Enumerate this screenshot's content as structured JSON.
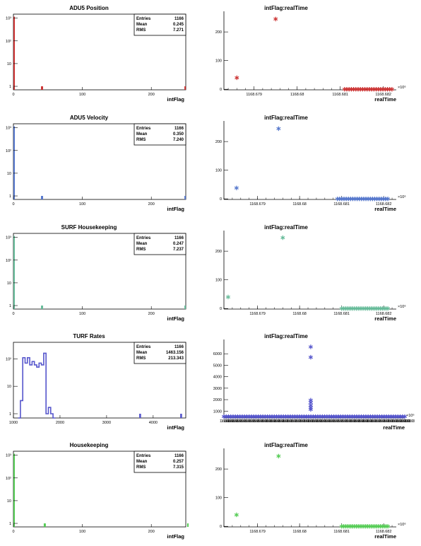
{
  "chart_data": [
    {
      "type": "bar",
      "title": "ADU5 Position",
      "xlabel": "intFlag",
      "ylabel": "",
      "log_y": true,
      "xlim": [
        0,
        250
      ],
      "ylim": [
        0.7,
        1500
      ],
      "xticks": [
        0,
        100,
        200
      ],
      "ytick_labels": [
        "1",
        "10",
        "10²",
        "10³"
      ],
      "ytick_values": [
        1,
        10,
        100,
        1000
      ],
      "color": "#cc3333",
      "bins": [
        {
          "x0": 0,
          "x1": 2,
          "y": 1160
        },
        {
          "x0": 40,
          "x1": 43,
          "y": 1
        },
        {
          "x0": 248,
          "x1": 250,
          "y": 1
        }
      ],
      "stats": {
        "entries_label": "Entries",
        "entries": "1166",
        "mean_label": "Mean",
        "mean": "0.245",
        "rms_label": "RMS",
        "rms": "7.271"
      }
    },
    {
      "type": "scatter",
      "title": "intFlag:realTime",
      "xlabel": "realTime",
      "ylabel": "",
      "xlim": [
        1168.6783,
        1168.6823
      ],
      "ylim": [
        -2,
        262
      ],
      "xtick_values": [
        1168.679,
        1168.68,
        1168.681,
        1168.682
      ],
      "xtick_labels": [
        "1168.679",
        "1168.68",
        "1168.681",
        "1168.682"
      ],
      "ytick_values": [
        0,
        100,
        200
      ],
      "ytick_labels": [
        "0",
        "100",
        "200"
      ],
      "x_multiplier": "×10⁶",
      "color": "#cc3333",
      "points": [
        [
          1168.6786,
          40
        ],
        [
          1168.6795,
          245
        ]
      ],
      "dense": {
        "x0": 1168.6811,
        "x1": 1168.6822,
        "y": 0,
        "n": 22
      }
    },
    {
      "type": "bar",
      "title": "ADU5 Velocity",
      "xlabel": "intFlag",
      "ylabel": "",
      "log_y": true,
      "xlim": [
        0,
        250
      ],
      "ylim": [
        0.7,
        1500
      ],
      "xticks": [
        0,
        100,
        200
      ],
      "ytick_labels": [
        "1",
        "10",
        "10²",
        "10³"
      ],
      "ytick_values": [
        1,
        10,
        100,
        1000
      ],
      "color": "#5577cc",
      "bins": [
        {
          "x0": 0,
          "x1": 2,
          "y": 1160
        },
        {
          "x0": 40,
          "x1": 43,
          "y": 1
        },
        {
          "x0": 248,
          "x1": 250,
          "y": 1
        }
      ],
      "stats": {
        "entries_label": "Entries",
        "entries": "1166",
        "mean_label": "Mean",
        "mean": "0.350",
        "rms_label": "RMS",
        "rms": "7.240"
      }
    },
    {
      "type": "scatter",
      "title": "intFlag:realTime",
      "xlabel": "realTime",
      "ylabel": "",
      "xlim": [
        1168.6782,
        1168.6823
      ],
      "ylim": [
        -2,
        262
      ],
      "xtick_values": [
        1168.679,
        1168.68,
        1168.681,
        1168.682
      ],
      "xtick_labels": [
        "1168.679",
        "1168.68",
        "1168.681",
        "1168.682"
      ],
      "ytick_values": [
        0,
        100,
        200
      ],
      "ytick_labels": [
        "0",
        "100",
        "200"
      ],
      "x_multiplier": "×10⁶",
      "color": "#5577cc",
      "points": [
        [
          1168.6785,
          38
        ],
        [
          1168.6795,
          245
        ]
      ],
      "dense": {
        "x0": 1168.6809,
        "x1": 1168.6821,
        "y": 0,
        "n": 24
      }
    },
    {
      "type": "bar",
      "title": "SURF Housekeeping",
      "xlabel": "intFlag",
      "ylabel": "",
      "log_y": true,
      "xlim": [
        0,
        250
      ],
      "ylim": [
        0.7,
        1500
      ],
      "xticks": [
        0,
        100,
        200
      ],
      "ytick_labels": [
        "1",
        "10",
        "10²",
        "10³"
      ],
      "ytick_values": [
        1,
        10,
        100,
        1000
      ],
      "color": "#66bb99",
      "bins": [
        {
          "x0": 0,
          "x1": 2,
          "y": 1160
        },
        {
          "x0": 40,
          "x1": 43,
          "y": 1
        },
        {
          "x0": 248,
          "x1": 250,
          "y": 1
        }
      ],
      "stats": {
        "entries_label": "Entries",
        "entries": "1166",
        "mean_label": "Mean",
        "mean": "0.247",
        "rms_label": "RMS",
        "rms": "7.237"
      }
    },
    {
      "type": "scatter",
      "title": "intFlag:realTime",
      "xlabel": "realTime",
      "ylabel": "",
      "xlim": [
        1168.6782,
        1168.6823
      ],
      "ylim": [
        -2,
        262
      ],
      "xtick_values": [
        1168.679,
        1168.68,
        1168.681,
        1168.682
      ],
      "xtick_labels": [
        "1168.679",
        "1168.68",
        "1168.681",
        "1168.682"
      ],
      "ytick_values": [
        0,
        100,
        200
      ],
      "ytick_labels": [
        "0",
        "100",
        "200"
      ],
      "x_multiplier": "×10⁶",
      "color": "#66bb99",
      "points": [
        [
          1168.6783,
          40
        ],
        [
          1168.6796,
          247
        ]
      ],
      "dense": {
        "x0": 1168.681,
        "x1": 1168.6821,
        "y": 0,
        "n": 26
      }
    },
    {
      "type": "bar",
      "title": "TURF Rates",
      "xlabel": "intFlag",
      "ylabel": "",
      "log_y": true,
      "outline": true,
      "xlim": [
        1000,
        4700
      ],
      "ylim": [
        0.7,
        400
      ],
      "xticks": [
        1000,
        2000,
        3000,
        4000
      ],
      "ytick_labels": [
        "1",
        "10",
        "10²"
      ],
      "ytick_values": [
        1,
        10,
        100
      ],
      "color": "#5555cc",
      "step_bins": [
        [
          1100,
          1150,
          0.7
        ],
        [
          1150,
          1200,
          3
        ],
        [
          1200,
          1250,
          110
        ],
        [
          1250,
          1300,
          70
        ],
        [
          1300,
          1350,
          110
        ],
        [
          1350,
          1400,
          60
        ],
        [
          1400,
          1450,
          80
        ],
        [
          1450,
          1500,
          60
        ],
        [
          1500,
          1550,
          50
        ],
        [
          1550,
          1600,
          70
        ],
        [
          1600,
          1650,
          60
        ],
        [
          1650,
          1700,
          160
        ],
        [
          1700,
          1750,
          1
        ],
        [
          1750,
          1800,
          1.7
        ],
        [
          1800,
          1850,
          1
        ],
        [
          1850,
          1900,
          0.7
        ]
      ],
      "bins": [
        {
          "x0": 3700,
          "x1": 3740,
          "y": 1
        },
        {
          "x0": 4580,
          "x1": 4620,
          "y": 1
        }
      ],
      "stats": {
        "entries_label": "Entries",
        "entries": "1166",
        "mean_label": "Mean",
        "mean": "1463.156",
        "rms_label": "RMS",
        "rms": "213.343"
      }
    },
    {
      "type": "scatter",
      "title": "intFlag:realTime",
      "xlabel": "realTime",
      "ylabel": "",
      "xlim": [
        0,
        100
      ],
      "ylim": [
        400,
        7000
      ],
      "xtick_values": [],
      "xtick_labels": [],
      "dense_axis_labels": true,
      "ytick_values": [
        1000,
        2000,
        3000,
        4000,
        5000,
        6000
      ],
      "ytick_labels": [
        "1000",
        "2000",
        "3000",
        "4000",
        "5000",
        "6000"
      ],
      "x_multiplier": "×10⁶",
      "color": "#5555cc",
      "points": [
        [
          48,
          6600
        ],
        [
          48,
          5700
        ],
        [
          48,
          1950
        ],
        [
          48,
          1750
        ],
        [
          48,
          1500
        ],
        [
          48,
          1300
        ],
        [
          48,
          1150
        ]
      ],
      "dense": {
        "x0": 0,
        "x1": 100,
        "y": 520,
        "n": 80
      }
    },
    {
      "type": "bar",
      "title": "Housekeeping",
      "xlabel": "intFlag",
      "ylabel": "",
      "log_y": true,
      "xlim": [
        0,
        250
      ],
      "ylim": [
        0.7,
        1500
      ],
      "xticks": [
        0,
        100,
        200
      ],
      "ytick_labels": [
        "1",
        "10",
        "10²",
        "10³"
      ],
      "ytick_values": [
        1,
        10,
        100,
        1000
      ],
      "color": "#55cc55",
      "bins": [
        {
          "x0": 0,
          "x1": 2,
          "y": 1160
        },
        {
          "x0": 44,
          "x1": 47,
          "y": 1
        },
        {
          "x0": 252,
          "x1": 254,
          "y": 1
        }
      ],
      "stats": {
        "entries_label": "Entries",
        "entries": "1166",
        "mean_label": "Mean",
        "mean": "0.257",
        "rms_label": "RMS",
        "rms": "7.315"
      }
    },
    {
      "type": "scatter",
      "title": "intFlag:realTime",
      "xlabel": "realTime",
      "ylabel": "",
      "xlim": [
        1168.6782,
        1168.6823
      ],
      "ylim": [
        -2,
        262
      ],
      "xtick_values": [
        1168.679,
        1168.68,
        1168.681,
        1168.682
      ],
      "xtick_labels": [
        "1168.679",
        "1168.68",
        "1168.681",
        "1168.682"
      ],
      "ytick_values": [
        0,
        100,
        200
      ],
      "ytick_labels": [
        "0",
        "100",
        "200"
      ],
      "x_multiplier": "×10⁶",
      "color": "#55cc55",
      "points": [
        [
          1168.6785,
          40
        ],
        [
          1168.6795,
          245
        ]
      ],
      "dense": {
        "x0": 1168.681,
        "x1": 1168.6821,
        "y": 0,
        "n": 26
      }
    }
  ]
}
